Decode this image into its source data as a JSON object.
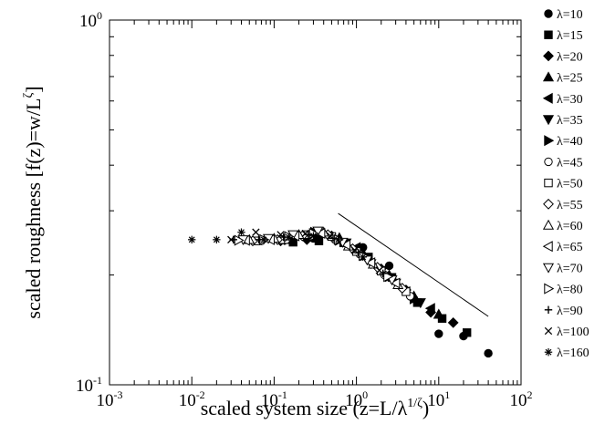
{
  "chart_data": {
    "type": "scatter",
    "xscale": "log",
    "yscale": "log",
    "xlim": [
      0.001,
      100
    ],
    "ylim": [
      0.1,
      1
    ],
    "grid": false,
    "legend_position": "right-outside",
    "xlabel": {
      "prefix": "scaled system size (z=L/λ",
      "sup": "1/ζ",
      "suffix": ")"
    },
    "ylabel": {
      "prefix": "scaled roughness [f(z)=w/L",
      "sup": "ζ",
      "suffix": "]"
    },
    "x_ticks": [
      {
        "value": 0.001,
        "base": "10",
        "exp": "-3"
      },
      {
        "value": 0.01,
        "base": "10",
        "exp": "-2"
      },
      {
        "value": 0.1,
        "base": "10",
        "exp": "-1"
      },
      {
        "value": 1,
        "base": "10",
        "exp": "0"
      },
      {
        "value": 10,
        "base": "10",
        "exp": "1"
      },
      {
        "value": 100,
        "base": "10",
        "exp": "2"
      }
    ],
    "y_ticks": [
      {
        "value": 0.1,
        "base": "10",
        "exp": "-1"
      },
      {
        "value": 1,
        "base": "10",
        "exp": "0"
      }
    ],
    "reference_line": {
      "x": [
        0.6,
        40
      ],
      "y": [
        0.295,
        0.154
      ]
    },
    "series": [
      {
        "name": "λ=10",
        "marker": "filled-circle",
        "points": [
          [
            40,
            0.122
          ],
          [
            20,
            0.136
          ],
          [
            10,
            0.138
          ],
          [
            5,
            0.172
          ],
          [
            2.5,
            0.212
          ],
          [
            1.2,
            0.238
          ],
          [
            0.6,
            0.25
          ],
          [
            0.3,
            0.252
          ],
          [
            0.15,
            0.25
          ]
        ]
      },
      {
        "name": "λ=15",
        "marker": "filled-square",
        "points": [
          [
            22,
            0.139
          ],
          [
            11,
            0.152
          ],
          [
            5.5,
            0.168
          ],
          [
            2.7,
            0.197
          ],
          [
            1.4,
            0.224
          ],
          [
            0.7,
            0.245
          ],
          [
            0.35,
            0.248
          ],
          [
            0.17,
            0.246
          ]
        ]
      },
      {
        "name": "λ=20",
        "marker": "filled-diamond",
        "points": [
          [
            15,
            0.148
          ],
          [
            8,
            0.158
          ],
          [
            4,
            0.182
          ],
          [
            2,
            0.208
          ],
          [
            1,
            0.235
          ],
          [
            0.5,
            0.256
          ],
          [
            0.25,
            0.25
          ],
          [
            0.12,
            0.248
          ]
        ]
      },
      {
        "name": "λ=25",
        "marker": "filled-triangle-up",
        "points": [
          [
            10,
            0.156
          ],
          [
            5,
            0.175
          ],
          [
            2.5,
            0.2
          ],
          [
            1.25,
            0.226
          ],
          [
            0.62,
            0.253
          ],
          [
            0.31,
            0.258
          ],
          [
            0.16,
            0.25
          ]
        ]
      },
      {
        "name": "λ=30",
        "marker": "filled-triangle-left",
        "points": [
          [
            8,
            0.162
          ],
          [
            4,
            0.18
          ],
          [
            2,
            0.205
          ],
          [
            1,
            0.238
          ],
          [
            0.5,
            0.252
          ],
          [
            0.25,
            0.255
          ],
          [
            0.12,
            0.25
          ]
        ]
      },
      {
        "name": "λ=35",
        "marker": "filled-triangle-down",
        "points": [
          [
            6,
            0.168
          ],
          [
            3,
            0.19
          ],
          [
            1.5,
            0.215
          ],
          [
            0.75,
            0.245
          ],
          [
            0.37,
            0.255
          ],
          [
            0.18,
            0.252
          ]
        ]
      },
      {
        "name": "λ=40",
        "marker": "filled-triangle-right",
        "points": [
          [
            5,
            0.172
          ],
          [
            2.5,
            0.198
          ],
          [
            1.25,
            0.226
          ],
          [
            0.62,
            0.249
          ],
          [
            0.31,
            0.262
          ],
          [
            0.15,
            0.25
          ]
        ]
      },
      {
        "name": "λ=45",
        "marker": "open-circle",
        "points": [
          [
            4.5,
            0.175
          ],
          [
            2.2,
            0.2
          ],
          [
            1.1,
            0.228
          ],
          [
            0.55,
            0.25
          ],
          [
            0.28,
            0.256
          ],
          [
            0.14,
            0.25
          ],
          [
            0.07,
            0.248
          ]
        ]
      },
      {
        "name": "λ=50",
        "marker": "open-square",
        "points": [
          [
            4,
            0.18
          ],
          [
            2,
            0.205
          ],
          [
            1,
            0.232
          ],
          [
            0.5,
            0.255
          ],
          [
            0.25,
            0.258
          ],
          [
            0.12,
            0.25
          ],
          [
            0.06,
            0.248
          ]
        ]
      },
      {
        "name": "λ=55",
        "marker": "open-diamond",
        "points": [
          [
            3.6,
            0.184
          ],
          [
            1.8,
            0.21
          ],
          [
            0.9,
            0.236
          ],
          [
            0.45,
            0.258
          ],
          [
            0.22,
            0.256
          ],
          [
            0.11,
            0.25
          ],
          [
            0.055,
            0.248
          ]
        ]
      },
      {
        "name": "λ=60",
        "marker": "open-triangle-up",
        "points": [
          [
            3.2,
            0.188
          ],
          [
            1.6,
            0.214
          ],
          [
            0.8,
            0.24
          ],
          [
            0.4,
            0.262
          ],
          [
            0.2,
            0.258
          ],
          [
            0.1,
            0.252
          ],
          [
            0.05,
            0.25
          ]
        ]
      },
      {
        "name": "λ=65",
        "marker": "open-triangle-left",
        "points": [
          [
            3,
            0.19
          ],
          [
            1.5,
            0.216
          ],
          [
            0.75,
            0.242
          ],
          [
            0.37,
            0.26
          ],
          [
            0.18,
            0.256
          ],
          [
            0.09,
            0.25
          ],
          [
            0.045,
            0.249
          ]
        ]
      },
      {
        "name": "λ=70",
        "marker": "open-triangle-down",
        "points": [
          [
            2.7,
            0.194
          ],
          [
            1.35,
            0.22
          ],
          [
            0.68,
            0.246
          ],
          [
            0.34,
            0.264
          ],
          [
            0.17,
            0.258
          ],
          [
            0.085,
            0.252
          ],
          [
            0.042,
            0.25
          ]
        ]
      },
      {
        "name": "λ=80",
        "marker": "open-triangle-right",
        "points": [
          [
            2.4,
            0.198
          ],
          [
            1.2,
            0.226
          ],
          [
            0.6,
            0.25
          ],
          [
            0.3,
            0.26
          ],
          [
            0.15,
            0.255
          ],
          [
            0.075,
            0.25
          ],
          [
            0.037,
            0.249
          ]
        ]
      },
      {
        "name": "λ=90",
        "marker": "plus",
        "points": [
          [
            2.1,
            0.202
          ],
          [
            1.05,
            0.23
          ],
          [
            0.52,
            0.252
          ],
          [
            0.26,
            0.258
          ],
          [
            0.13,
            0.254
          ],
          [
            0.065,
            0.25
          ],
          [
            0.032,
            0.25
          ]
        ]
      },
      {
        "name": "λ=100",
        "marker": "cross",
        "points": [
          [
            1.9,
            0.206
          ],
          [
            0.95,
            0.234
          ],
          [
            0.48,
            0.256
          ],
          [
            0.24,
            0.26
          ],
          [
            0.12,
            0.258
          ],
          [
            0.06,
            0.262
          ],
          [
            0.03,
            0.25
          ]
        ]
      },
      {
        "name": "λ=160",
        "marker": "asterisk",
        "points": [
          [
            1.2,
            0.224
          ],
          [
            0.6,
            0.25
          ],
          [
            0.3,
            0.256
          ],
          [
            0.15,
            0.254
          ],
          [
            0.075,
            0.25
          ],
          [
            0.04,
            0.262
          ],
          [
            0.02,
            0.25
          ],
          [
            0.01,
            0.25
          ]
        ]
      }
    ]
  }
}
